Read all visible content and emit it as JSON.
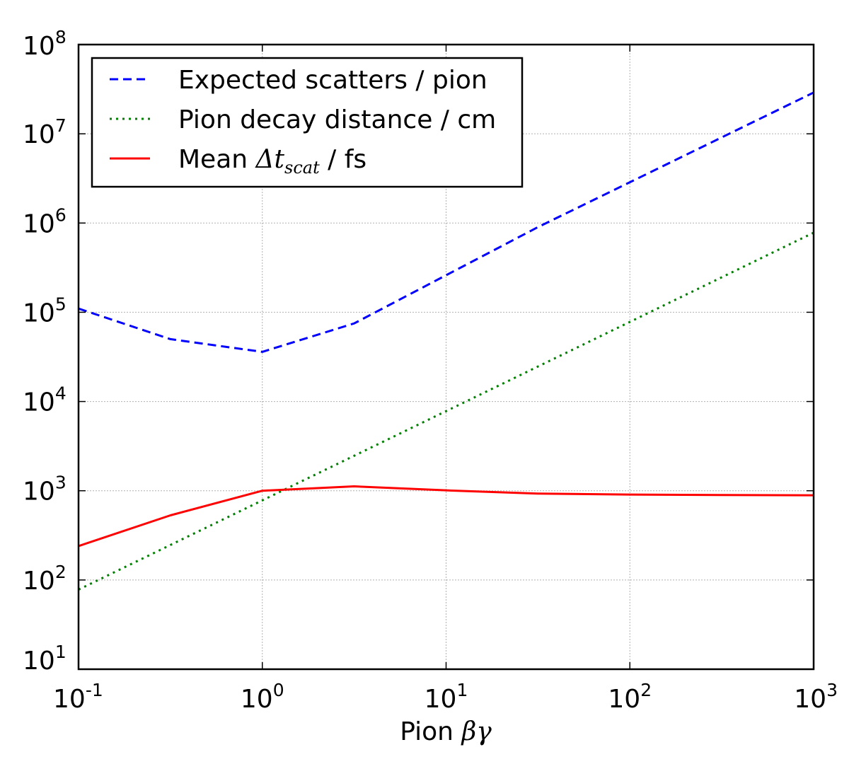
{
  "chart_data": {
    "type": "line",
    "x_scale": "log",
    "y_scale": "log",
    "xlim": [
      0.1,
      1000
    ],
    "ylim": [
      10,
      100000000
    ],
    "grid": true,
    "legend_position": "top-left",
    "xlabel": {
      "text": "Pion ",
      "math": "βγ"
    },
    "x_ticks": [
      {
        "value": 0.1,
        "base": "10",
        "exp": "-1"
      },
      {
        "value": 1,
        "base": "10",
        "exp": "0"
      },
      {
        "value": 10,
        "base": "10",
        "exp": "1"
      },
      {
        "value": 100,
        "base": "10",
        "exp": "2"
      },
      {
        "value": 1000,
        "base": "10",
        "exp": "3"
      }
    ],
    "y_ticks": [
      {
        "value": 10,
        "base": "10",
        "exp": "1"
      },
      {
        "value": 100,
        "base": "10",
        "exp": "2"
      },
      {
        "value": 1000,
        "base": "10",
        "exp": "3"
      },
      {
        "value": 10000,
        "base": "10",
        "exp": "4"
      },
      {
        "value": 100000,
        "base": "10",
        "exp": "5"
      },
      {
        "value": 1000000,
        "base": "10",
        "exp": "6"
      },
      {
        "value": 10000000,
        "base": "10",
        "exp": "7"
      },
      {
        "value": 100000000,
        "base": "10",
        "exp": "8"
      }
    ],
    "series": [
      {
        "name": "Expected scatters / pion",
        "color": "#0000ff",
        "style": "dashed",
        "x": [
          0.1,
          0.316,
          1,
          3.16,
          31.6,
          1000
        ],
        "y": [
          110000,
          50000,
          36000,
          75000,
          900000,
          29000000
        ]
      },
      {
        "name": "Pion decay distance / cm",
        "color": "#008000",
        "style": "dotted",
        "x": [
          0.1,
          1000
        ],
        "y": [
          78,
          780000
        ]
      },
      {
        "name": "Mean Δt_scat / fs",
        "legend_prefix": "Mean ",
        "legend_math": "Δt",
        "legend_sub": "scat",
        "legend_suffix": " / fs",
        "color": "#ff0000",
        "style": "solid",
        "x": [
          0.1,
          0.316,
          1,
          3.16,
          10,
          31.6,
          100,
          316,
          1000
        ],
        "y": [
          240,
          530,
          1000,
          1120,
          1010,
          930,
          905,
          895,
          890
        ]
      }
    ]
  }
}
